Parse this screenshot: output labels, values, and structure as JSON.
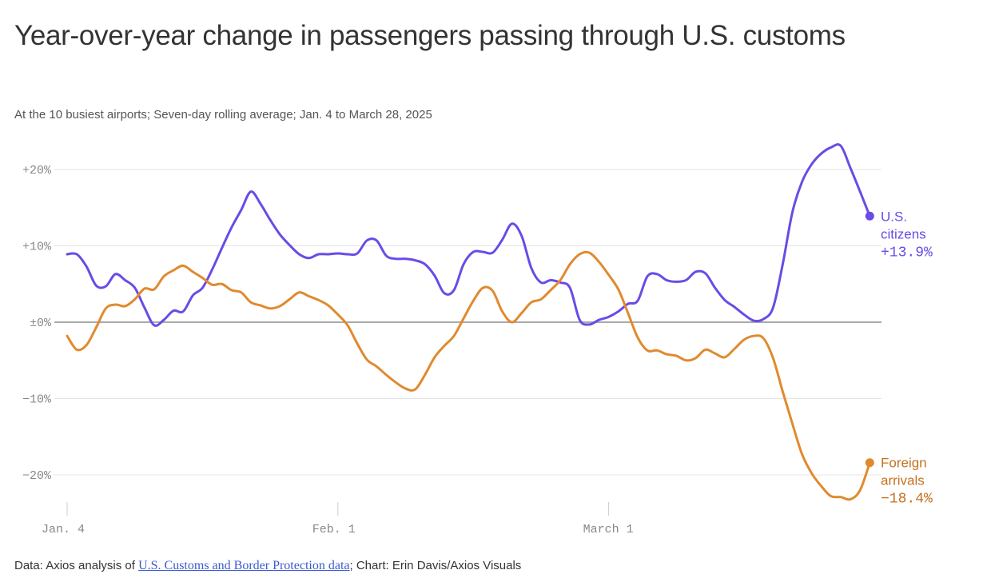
{
  "chart_data": {
    "type": "line",
    "title": "Year-over-year change in passengers passing through U.S. customs",
    "subtitle": "At the 10 busiest airports; Seven-day rolling average; Jan. 4 to March 28, 2025",
    "xlabel": "",
    "ylabel": "",
    "x_unit": "days since Jan. 4, 2025",
    "xlim": [
      0,
      83
    ],
    "ylim": [
      -25,
      25
    ],
    "grid": true,
    "y_ticks": [
      {
        "value": 20,
        "label": "+20%"
      },
      {
        "value": 10,
        "label": "+10%"
      },
      {
        "value": 0,
        "label": "±0%"
      },
      {
        "value": -10,
        "label": "−10%"
      },
      {
        "value": -20,
        "label": "−20%"
      }
    ],
    "x_ticks": [
      {
        "value": 0,
        "label": "Jan. 4"
      },
      {
        "value": 28,
        "label": "Feb. 1"
      },
      {
        "value": 56,
        "label": "March 1"
      }
    ],
    "series": [
      {
        "name": "U.S. citizens",
        "label_lines": [
          "U.S.",
          "citizens"
        ],
        "end_label": "+13.9%",
        "color": "#6a4be6",
        "values": [
          8.9,
          8.9,
          7.3,
          4.8,
          4.7,
          6.3,
          5.5,
          4.5,
          1.9,
          -0.4,
          0.3,
          1.5,
          1.4,
          3.5,
          4.5,
          6.9,
          9.7,
          12.4,
          14.7,
          17.1,
          15.5,
          13.4,
          11.5,
          10.1,
          8.9,
          8.4,
          8.9,
          8.9,
          9.0,
          8.9,
          9.0,
          10.7,
          10.7,
          8.7,
          8.3,
          8.3,
          8.1,
          7.6,
          6.1,
          3.8,
          4.2,
          7.6,
          9.2,
          9.2,
          9.1,
          10.8,
          12.9,
          11.3,
          7.1,
          5.2,
          5.5,
          5.2,
          4.5,
          0.3,
          -0.3,
          0.3,
          0.7,
          1.4,
          2.4,
          2.8,
          6.0,
          6.3,
          5.5,
          5.3,
          5.5,
          6.6,
          6.4,
          4.5,
          2.9,
          2.0,
          1.0,
          0.2,
          0.4,
          1.9,
          7.6,
          14.4,
          18.4,
          20.7,
          22.1,
          22.9,
          23.1,
          20.2,
          17.1,
          13.9
        ]
      },
      {
        "name": "Foreign arrivals",
        "label_lines": [
          "Foreign",
          "arrivals"
        ],
        "end_label": "−18.4%",
        "color": "#e08a2e",
        "label_color": "#c4711f",
        "values": [
          -1.8,
          -3.6,
          -3.0,
          -0.7,
          1.8,
          2.3,
          2.1,
          3.0,
          4.4,
          4.3,
          6.0,
          6.8,
          7.4,
          6.6,
          5.8,
          4.9,
          5.0,
          4.2,
          3.9,
          2.6,
          2.2,
          1.8,
          2.1,
          3.0,
          3.9,
          3.4,
          2.9,
          2.2,
          1.0,
          -0.4,
          -2.8,
          -4.9,
          -5.8,
          -6.9,
          -7.9,
          -8.7,
          -8.8,
          -6.9,
          -4.6,
          -3.1,
          -1.8,
          0.5,
          2.8,
          4.5,
          4.1,
          1.4,
          0.0,
          1.2,
          2.6,
          3.0,
          4.2,
          5.5,
          7.6,
          8.9,
          9.1,
          7.9,
          6.2,
          4.3,
          1.2,
          -2.0,
          -3.7,
          -3.7,
          -4.2,
          -4.4,
          -5.0,
          -4.7,
          -3.6,
          -4.1,
          -4.6,
          -3.5,
          -2.3,
          -1.8,
          -2.1,
          -4.7,
          -9.1,
          -13.3,
          -17.3,
          -19.8,
          -21.5,
          -22.8,
          -22.9,
          -23.2,
          -22.0,
          -18.4
        ]
      }
    ]
  },
  "footer": {
    "prefix": "Data: Axios analysis of ",
    "link_text": "U.S. Customs and Border Protection data",
    "suffix": "; Chart: Erin Davis/Axios Visuals"
  }
}
